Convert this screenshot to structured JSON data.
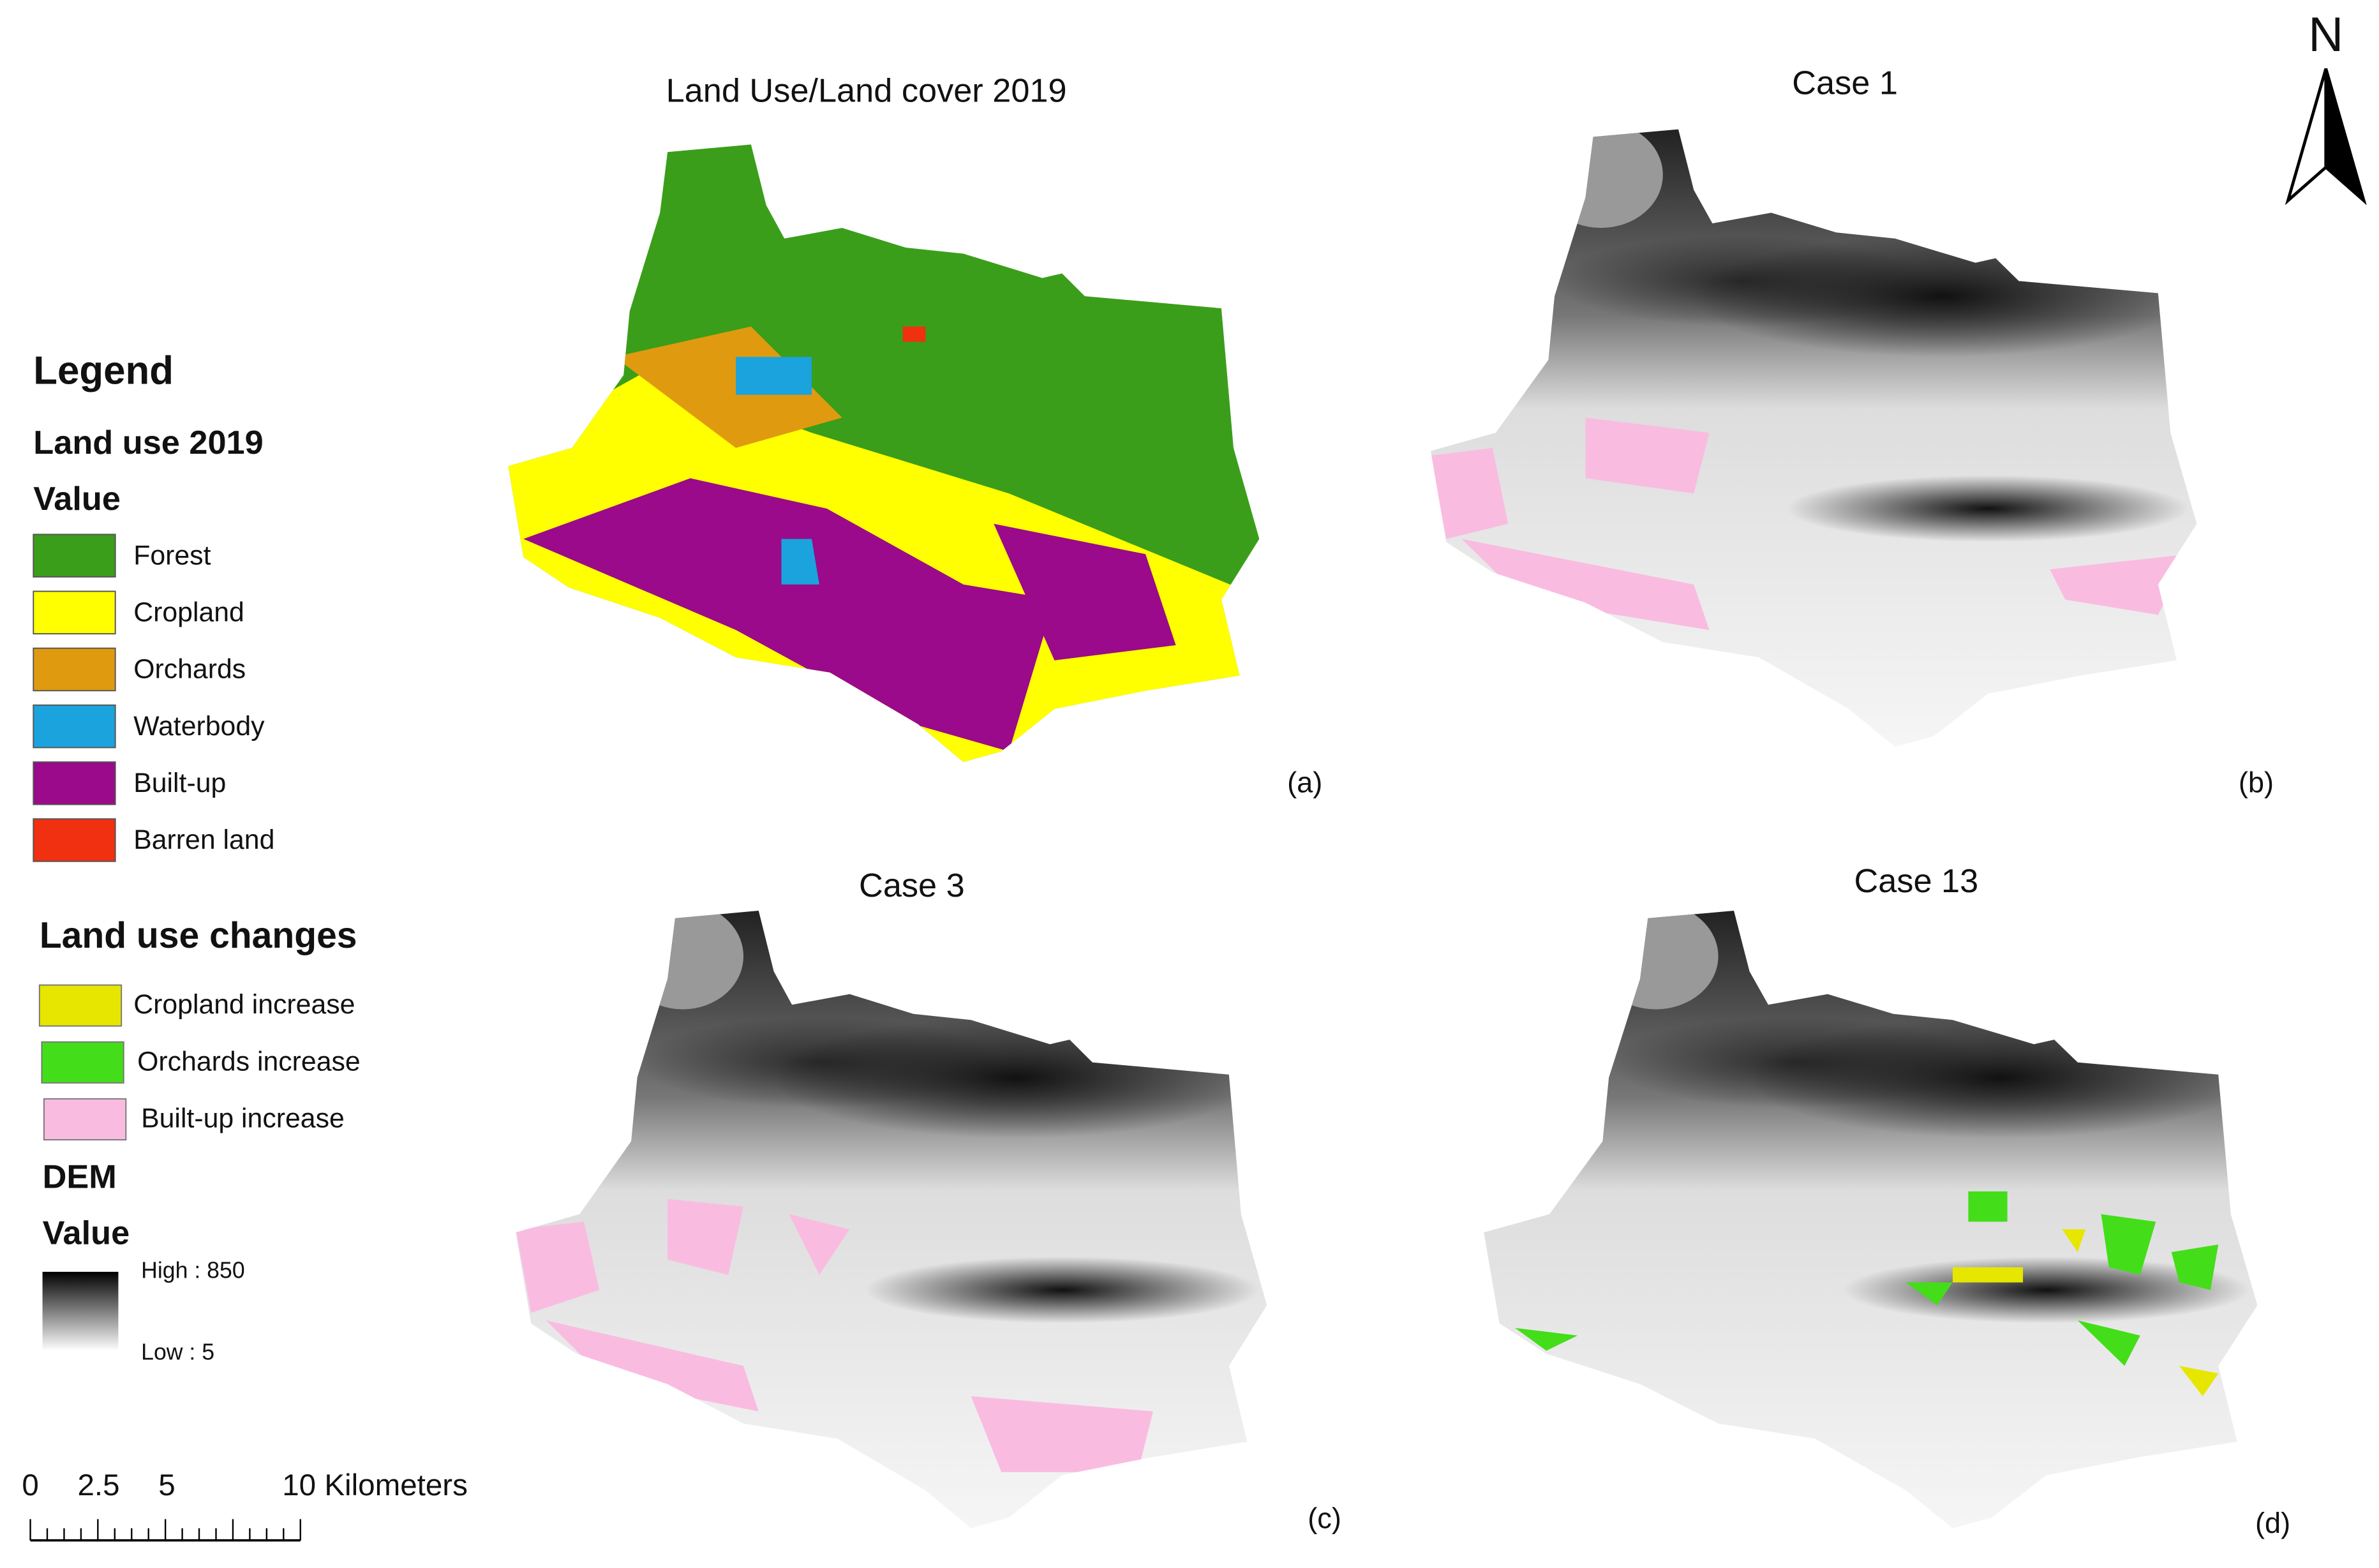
{
  "north": "N",
  "panels": [
    {
      "title": "Land Use/Land cover 2019",
      "label": "(a)"
    },
    {
      "title": "Case 1",
      "label": "(b)"
    },
    {
      "title": "Case 3",
      "label": "(c)"
    },
    {
      "title": "Case 13",
      "label": "(d)"
    }
  ],
  "legend": {
    "title": "Legend",
    "land_use": {
      "title": "Land use 2019",
      "subtitle": "Value",
      "items": [
        {
          "label": "Forest",
          "color": "#3a9e1a"
        },
        {
          "label": "Cropland",
          "color": "#ffff00"
        },
        {
          "label": "Orchards",
          "color": "#e09a10"
        },
        {
          "label": "Waterbody",
          "color": "#1aa3dd"
        },
        {
          "label": "Built-up",
          "color": "#9a0a8a"
        },
        {
          "label": "Barren land",
          "color": "#f03010"
        }
      ]
    },
    "changes": {
      "title": "Land use changes",
      "items": [
        {
          "label": "Cropland increase",
          "color": "#e6e600"
        },
        {
          "label": "Orchards increase",
          "color": "#44dd1a"
        },
        {
          "label": "Built-up increase",
          "color": "#f9bce0"
        }
      ]
    },
    "dem": {
      "title": "DEM",
      "subtitle": "Value",
      "high": "High : 850",
      "low": "Low : 5"
    }
  },
  "scale_bar": {
    "labels": [
      "0",
      "2.5",
      "5",
      "10 Kilometers"
    ]
  }
}
